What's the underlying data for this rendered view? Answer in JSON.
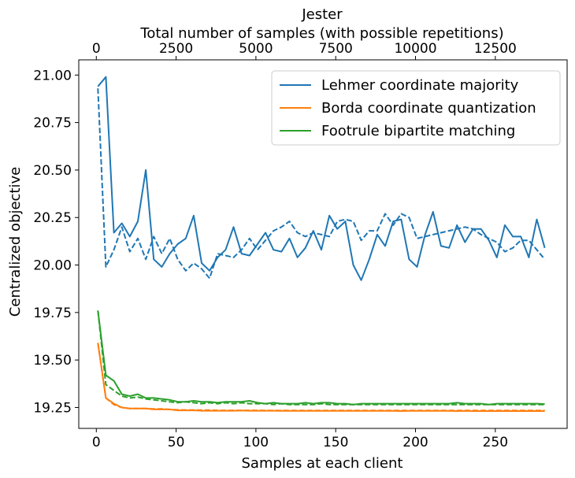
{
  "chart_data": {
    "type": "line",
    "title": "Jester",
    "top_xlabel": "Total number of samples (with possible repetitions)",
    "xlabel": "Samples at each client",
    "ylabel": "Centralized objective",
    "xlim": [
      -11,
      295
    ],
    "ylim": [
      19.14,
      21.08
    ],
    "top_xlim": [
      -550,
      14750
    ],
    "xticks": [
      0,
      50,
      100,
      150,
      200,
      250
    ],
    "top_xticks": [
      0,
      2500,
      5000,
      7500,
      10000,
      12500
    ],
    "yticks": [
      19.25,
      19.5,
      19.75,
      20.0,
      20.25,
      20.5,
      20.75,
      21.0
    ],
    "ytick_labels": [
      "19.25",
      "19.50",
      "19.75",
      "20.00",
      "20.25",
      "20.50",
      "20.75",
      "21.00"
    ],
    "grid": false,
    "legend_position": "top-right",
    "legend": [
      {
        "label": "Lehmer coordinate majority",
        "color": "#1f77b4"
      },
      {
        "label": "Borda coordinate quantization",
        "color": "#ff7f0e"
      },
      {
        "label": "Footrule bipartite matching",
        "color": "#2ca02c"
      }
    ],
    "x": [
      1,
      6,
      11,
      16,
      21,
      26,
      31,
      36,
      41,
      46,
      51,
      56,
      61,
      66,
      71,
      76,
      81,
      86,
      91,
      96,
      101,
      106,
      111,
      116,
      121,
      126,
      131,
      136,
      141,
      146,
      151,
      156,
      161,
      166,
      171,
      176,
      181,
      186,
      191,
      196,
      201,
      206,
      211,
      216,
      221,
      226,
      231,
      236,
      241,
      246,
      251,
      256,
      261,
      266,
      271,
      276,
      281
    ],
    "series": [
      {
        "legend_index": 0,
        "color": "#1f77b4",
        "dash": false,
        "values": [
          20.94,
          20.99,
          20.17,
          20.22,
          20.15,
          20.23,
          20.5,
          20.03,
          19.99,
          20.06,
          20.11,
          20.14,
          20.26,
          20.01,
          19.97,
          20.04,
          20.08,
          20.2,
          20.06,
          20.05,
          20.11,
          20.17,
          20.08,
          20.07,
          20.14,
          20.04,
          20.09,
          20.18,
          20.08,
          20.26,
          20.19,
          20.23,
          20.0,
          19.92,
          20.03,
          20.16,
          20.1,
          20.23,
          20.24,
          20.03,
          19.99,
          20.16,
          20.28,
          20.1,
          20.09,
          20.21,
          20.12,
          20.19,
          20.19,
          20.13,
          20.04,
          20.21,
          20.15,
          20.15,
          20.04,
          20.24,
          20.09
        ]
      },
      {
        "legend_index": 0,
        "color": "#1f77b4",
        "dash": true,
        "values": [
          20.93,
          19.99,
          20.08,
          20.2,
          20.07,
          20.14,
          20.03,
          20.15,
          20.06,
          20.14,
          20.03,
          19.97,
          20.01,
          19.98,
          19.93,
          20.06,
          20.05,
          20.04,
          20.08,
          20.14,
          20.08,
          20.13,
          20.18,
          20.2,
          20.23,
          20.17,
          20.15,
          20.17,
          20.16,
          20.15,
          20.23,
          20.24,
          20.23,
          20.13,
          20.18,
          20.18,
          20.27,
          20.21,
          20.27,
          20.25,
          20.14,
          20.15,
          20.16,
          20.17,
          20.18,
          20.19,
          20.2,
          20.19,
          20.16,
          20.14,
          20.12,
          20.07,
          20.09,
          20.13,
          20.13,
          20.08,
          20.03
        ]
      },
      {
        "legend_index": 1,
        "color": "#ff7f0e",
        "dash": false,
        "values": [
          19.59,
          19.3,
          19.27,
          19.25,
          19.245,
          19.245,
          19.245,
          19.24,
          19.24,
          19.24,
          19.235,
          19.235,
          19.235,
          19.233,
          19.233,
          19.233,
          19.233,
          19.233,
          19.234,
          19.233,
          19.233,
          19.233,
          19.233,
          19.232,
          19.232,
          19.232,
          19.232,
          19.232,
          19.232,
          19.232,
          19.233,
          19.232,
          19.232,
          19.232,
          19.232,
          19.232,
          19.232,
          19.232,
          19.231,
          19.232,
          19.232,
          19.232,
          19.232,
          19.232,
          19.232,
          19.231,
          19.232,
          19.231,
          19.231,
          19.231,
          19.231,
          19.231,
          19.231,
          19.231,
          19.231,
          19.231,
          19.231
        ]
      },
      {
        "legend_index": 1,
        "color": "#ff7f0e",
        "dash": true,
        "values": [
          19.59,
          19.3,
          19.265,
          19.25,
          19.245,
          19.245,
          19.245,
          19.243,
          19.243,
          19.24,
          19.238,
          19.237,
          19.237,
          19.236,
          19.236,
          19.235,
          19.235,
          19.235,
          19.235,
          19.235,
          19.235,
          19.234,
          19.234,
          19.234,
          19.234,
          19.234,
          19.234,
          19.234,
          19.234,
          19.234,
          19.234,
          19.234,
          19.234,
          19.234,
          19.234,
          19.234,
          19.234,
          19.234,
          19.234,
          19.234,
          19.234,
          19.234,
          19.234,
          19.234,
          19.234,
          19.234,
          19.234,
          19.234,
          19.234,
          19.234,
          19.234,
          19.234,
          19.234,
          19.234,
          19.234,
          19.234,
          19.234
        ]
      },
      {
        "legend_index": 2,
        "color": "#2ca02c",
        "dash": false,
        "values": [
          19.76,
          19.42,
          19.39,
          19.32,
          19.31,
          19.32,
          19.3,
          19.3,
          19.295,
          19.29,
          19.28,
          19.28,
          19.285,
          19.28,
          19.28,
          19.275,
          19.28,
          19.28,
          19.28,
          19.285,
          19.275,
          19.27,
          19.275,
          19.27,
          19.27,
          19.27,
          19.275,
          19.27,
          19.275,
          19.275,
          19.27,
          19.27,
          19.265,
          19.27,
          19.27,
          19.27,
          19.27,
          19.27,
          19.27,
          19.27,
          19.27,
          19.27,
          19.27,
          19.27,
          19.27,
          19.275,
          19.27,
          19.27,
          19.27,
          19.265,
          19.27,
          19.27,
          19.27,
          19.27,
          19.27,
          19.27,
          19.268
        ]
      },
      {
        "legend_index": 2,
        "color": "#2ca02c",
        "dash": true,
        "values": [
          19.76,
          19.37,
          19.34,
          19.31,
          19.3,
          19.305,
          19.295,
          19.29,
          19.285,
          19.28,
          19.275,
          19.28,
          19.275,
          19.27,
          19.275,
          19.27,
          19.275,
          19.27,
          19.275,
          19.27,
          19.27,
          19.27,
          19.265,
          19.27,
          19.265,
          19.265,
          19.265,
          19.265,
          19.27,
          19.265,
          19.265,
          19.265,
          19.265,
          19.265,
          19.265,
          19.265,
          19.265,
          19.265,
          19.265,
          19.265,
          19.265,
          19.265,
          19.265,
          19.265,
          19.265,
          19.265,
          19.265,
          19.265,
          19.265,
          19.265,
          19.265,
          19.265,
          19.265,
          19.265,
          19.265,
          19.265,
          19.265
        ]
      }
    ]
  }
}
